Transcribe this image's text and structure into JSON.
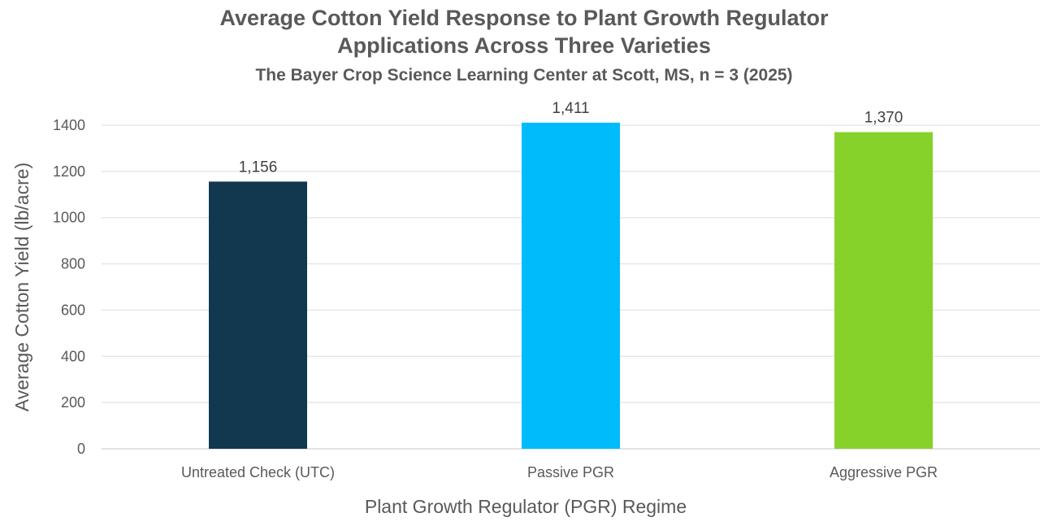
{
  "chart_data": {
    "type": "bar",
    "title_lines": [
      "Average Cotton Yield Response to Plant Growth Regulator",
      "Applications Across Three Varieties"
    ],
    "subtitle": "The Bayer Crop Science Learning Center at Scott, MS, n = 3 (2025)",
    "xlabel": "Plant Growth Regulator (PGR) Regime",
    "ylabel": "Average Cotton Yield (lb/acre)",
    "categories": [
      "Untreated Check (UTC)",
      "Passive PGR",
      "Aggressive PGR"
    ],
    "values": [
      1156,
      1411,
      1370
    ],
    "data_labels": [
      "1,156",
      "1,411",
      "1,370"
    ],
    "colors": [
      "#12384f",
      "#00bbfb",
      "#87d12b"
    ],
    "ylim": [
      0,
      1400
    ],
    "yticks": [
      0,
      200,
      400,
      600,
      800,
      1000,
      1200,
      1400
    ],
    "grid": true,
    "legend": "none"
  }
}
